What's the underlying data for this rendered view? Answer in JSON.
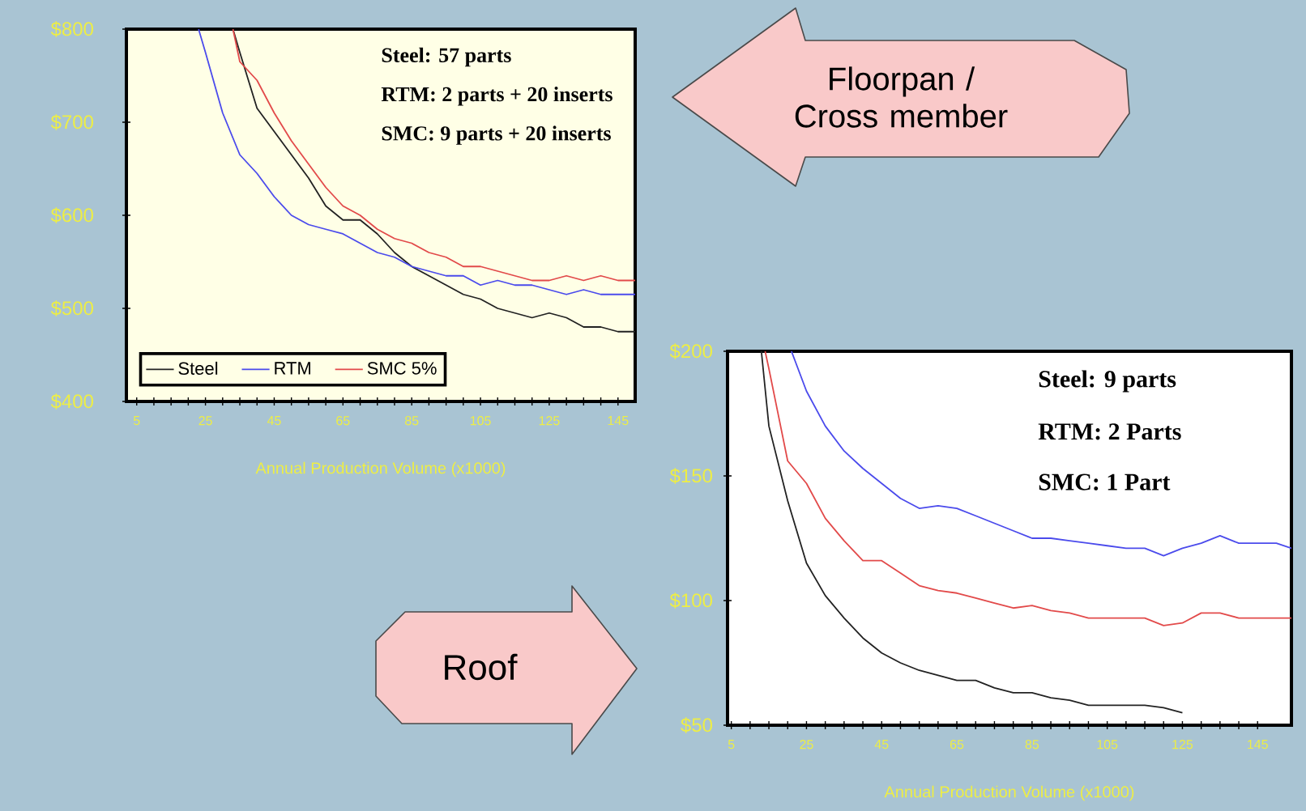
{
  "chart_data": [
    {
      "type": "line",
      "xlabel": "Annual Production Volume (x1000)",
      "xlim": [
        2,
        150
      ],
      "xticks": [
        5,
        25,
        45,
        65,
        85,
        105,
        125,
        145
      ],
      "ylim": [
        400,
        800
      ],
      "yticks": [
        {
          "value": 400,
          "label": "$400"
        },
        {
          "value": 500,
          "label": "$500"
        },
        {
          "value": 600,
          "label": "$600"
        },
        {
          "value": 700,
          "label": "$700"
        },
        {
          "value": 800,
          "label": "$800"
        }
      ],
      "legend": "bottom left",
      "annotations": [
        "Steel: 57 parts",
        "RTM: 2 parts + 20 inserts",
        "SMC: 9 parts + 20 inserts",
        "Floorpan / Cross member"
      ],
      "series": [
        {
          "name": "Steel",
          "color": "#222222",
          "x": [
            33,
            35,
            40,
            45,
            50,
            55,
            60,
            65,
            70,
            75,
            80,
            85,
            90,
            95,
            100,
            105,
            110,
            115,
            120,
            125,
            130,
            135,
            140,
            145,
            150
          ],
          "values": [
            800,
            775,
            715,
            690,
            665,
            640,
            610,
            595,
            595,
            580,
            560,
            545,
            535,
            525,
            515,
            510,
            500,
            495,
            490,
            495,
            490,
            480,
            480,
            475,
            475
          ]
        },
        {
          "name": "RTM",
          "color": "#4b4bec",
          "x": [
            23,
            25,
            30,
            35,
            40,
            45,
            50,
            55,
            60,
            65,
            70,
            75,
            80,
            85,
            90,
            95,
            100,
            105,
            110,
            115,
            120,
            125,
            130,
            135,
            140,
            145,
            150
          ],
          "values": [
            800,
            775,
            710,
            665,
            645,
            620,
            600,
            590,
            585,
            580,
            570,
            560,
            555,
            545,
            540,
            535,
            535,
            525,
            530,
            525,
            525,
            520,
            515,
            520,
            515,
            515,
            515
          ]
        },
        {
          "name": "SMC 5%",
          "color": "#e24a4a",
          "x": [
            33,
            35,
            40,
            45,
            50,
            55,
            60,
            65,
            70,
            75,
            80,
            85,
            90,
            95,
            100,
            105,
            110,
            115,
            120,
            125,
            130,
            135,
            140,
            145,
            150
          ],
          "values": [
            800,
            765,
            745,
            710,
            680,
            655,
            630,
            610,
            600,
            585,
            575,
            570,
            560,
            555,
            545,
            545,
            540,
            535,
            530,
            530,
            535,
            530,
            535,
            530,
            530
          ]
        }
      ]
    },
    {
      "type": "line",
      "title": "Roof",
      "xlabel": "Annual Production Volume (x1000)",
      "xlim": [
        4,
        154
      ],
      "xticks": [
        5,
        25,
        45,
        65,
        85,
        105,
        125,
        145
      ],
      "ylim": [
        50,
        200
      ],
      "yticks": [
        {
          "value": 50,
          "label": "$50"
        },
        {
          "value": 100,
          "label": "$100"
        },
        {
          "value": 150,
          "label": "$150"
        },
        {
          "value": 200,
          "label": "$200"
        }
      ],
      "annotations": [
        "Steel: 9 parts",
        "RTM: 2 Parts",
        "SMC: 1 Part"
      ],
      "series": [
        {
          "color": "#222222",
          "x": [
            13,
            15,
            20,
            25,
            30,
            35,
            40,
            45,
            50,
            55,
            60,
            65,
            70,
            75,
            80,
            85,
            90,
            95,
            100,
            105,
            110,
            115,
            120,
            125
          ],
          "values": [
            200,
            170,
            140,
            115,
            102,
            93,
            85,
            79,
            75,
            72,
            70,
            68,
            68,
            65,
            63,
            63,
            61,
            60,
            58,
            58,
            58,
            58,
            57,
            55
          ]
        },
        {
          "color": "#4b4bec",
          "x": [
            21,
            25,
            30,
            35,
            40,
            45,
            50,
            55,
            60,
            65,
            70,
            75,
            80,
            85,
            90,
            95,
            100,
            105,
            110,
            115,
            120,
            125,
            130,
            135,
            140,
            145,
            150,
            154
          ],
          "values": [
            200,
            184,
            170,
            160,
            153,
            147,
            141,
            137,
            138,
            137,
            134,
            131,
            128,
            125,
            125,
            124,
            123,
            122,
            121,
            121,
            118,
            121,
            123,
            126,
            123,
            123,
            123,
            121
          ]
        },
        {
          "color": "#e24a4a",
          "x": [
            14,
            15,
            20,
            25,
            30,
            35,
            40,
            45,
            50,
            55,
            60,
            65,
            70,
            75,
            80,
            85,
            90,
            95,
            100,
            105,
            110,
            115,
            120,
            125,
            130,
            135,
            140,
            145,
            150,
            154
          ],
          "values": [
            200,
            193,
            156,
            147,
            133,
            124,
            116,
            116,
            111,
            106,
            104,
            103,
            101,
            99,
            97,
            98,
            96,
            95,
            93,
            93,
            93,
            93,
            90,
            91,
            95,
            95,
            93,
            93,
            93,
            93
          ]
        }
      ]
    }
  ]
}
